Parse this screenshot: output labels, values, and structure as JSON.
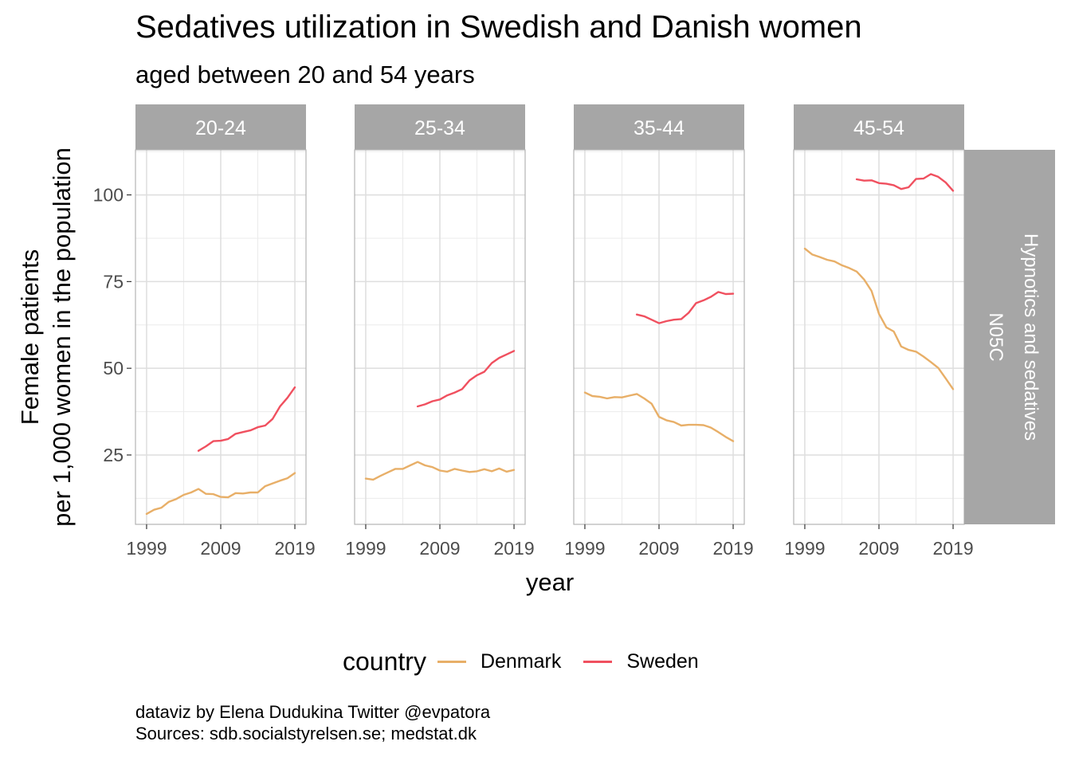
{
  "title": "Sedatives utilization in Swedish and Danish women",
  "subtitle": "aged between 20 and 54 years",
  "caption": {
    "line1": "dataviz by Elena Dudukina Twitter @evpatora",
    "line2": "Sources: sdb.socialstyrelsen.se; medstat.dk"
  },
  "legend": {
    "title": "country",
    "items": [
      {
        "label": "Denmark",
        "color": "#E8AF68"
      },
      {
        "label": "Sweden",
        "color": "#F0505F"
      }
    ]
  },
  "chart_data": {
    "type": "line",
    "xlabel": "year",
    "ylabel": [
      "Female patients",
      "per 1,000 women in the population"
    ],
    "row_strip": [
      "Hypnotics and sedatives",
      "N05C"
    ],
    "x_ticks": [
      1999,
      2009,
      2019
    ],
    "y_ticks": [
      25,
      50,
      75,
      100
    ],
    "xlim": [
      1997.5,
      2020.5
    ],
    "ylim": [
      5,
      113
    ],
    "grid": true,
    "legend_position": "bottom",
    "panels": [
      {
        "facet": "20-24",
        "series": [
          {
            "name": "Denmark",
            "x": [
              1999,
              2000,
              2001,
              2002,
              2003,
              2004,
              2005,
              2006,
              2007,
              2008,
              2009,
              2010,
              2011,
              2012,
              2013,
              2014,
              2015,
              2016,
              2017,
              2018,
              2019
            ],
            "y": [
              8,
              9.2,
              9.8,
              11.5,
              12.3,
              13.5,
              14.2,
              15.2,
              13.8,
              13.7,
              12.9,
              12.8,
              14,
              13.9,
              14.2,
              14.2,
              16,
              16.8,
              17.6,
              18.3,
              19.8
            ]
          },
          {
            "name": "Sweden",
            "x": [
              2006,
              2007,
              2008,
              2009,
              2010,
              2011,
              2012,
              2013,
              2014,
              2015,
              2016,
              2017,
              2018,
              2019
            ],
            "y": [
              26.2,
              27.5,
              29,
              29.1,
              29.6,
              31.1,
              31.6,
              32.1,
              33,
              33.5,
              35.4,
              39,
              41.5,
              44.5
            ]
          }
        ]
      },
      {
        "facet": "25-34",
        "series": [
          {
            "name": "Denmark",
            "x": [
              1999,
              2000,
              2001,
              2002,
              2003,
              2004,
              2005,
              2006,
              2007,
              2008,
              2009,
              2010,
              2011,
              2012,
              2013,
              2014,
              2015,
              2016,
              2017,
              2018,
              2019
            ],
            "y": [
              18.2,
              17.9,
              19,
              20,
              21,
              21,
              22,
              23,
              22,
              21.5,
              20.5,
              20.2,
              21,
              20.5,
              20.1,
              20.3,
              20.9,
              20.3,
              21.1,
              20.2,
              20.7
            ]
          },
          {
            "name": "Sweden",
            "x": [
              2006,
              2007,
              2008,
              2009,
              2010,
              2011,
              2012,
              2013,
              2014,
              2015,
              2016,
              2017,
              2018,
              2019
            ],
            "y": [
              39,
              39.6,
              40.5,
              41,
              42.2,
              43,
              44,
              46.5,
              48,
              49,
              51.5,
              53,
              54,
              55
            ]
          }
        ]
      },
      {
        "facet": "35-44",
        "series": [
          {
            "name": "Denmark",
            "x": [
              1999,
              2000,
              2001,
              2002,
              2003,
              2004,
              2005,
              2006,
              2007,
              2008,
              2009,
              2010,
              2011,
              2012,
              2013,
              2014,
              2015,
              2016,
              2017,
              2018,
              2019
            ],
            "y": [
              43,
              42,
              41.8,
              41.3,
              41.7,
              41.6,
              42.1,
              42.6,
              41.3,
              39.8,
              36,
              35,
              34.5,
              33.5,
              33.7,
              33.7,
              33.6,
              32.9,
              31.6,
              30.2,
              29
            ]
          },
          {
            "name": "Sweden",
            "x": [
              2006,
              2007,
              2008,
              2009,
              2010,
              2011,
              2012,
              2013,
              2014,
              2015,
              2016,
              2017,
              2018,
              2019
            ],
            "y": [
              65.5,
              65,
              64,
              63,
              63.6,
              64,
              64.2,
              66,
              68.8,
              69.6,
              70.6,
              72,
              71.4,
              71.5
            ]
          }
        ]
      },
      {
        "facet": "45-54",
        "series": [
          {
            "name": "Denmark",
            "x": [
              1999,
              2000,
              2001,
              2002,
              2003,
              2004,
              2005,
              2006,
              2007,
              2008,
              2009,
              2010,
              2011,
              2012,
              2013,
              2014,
              2015,
              2016,
              2017,
              2018,
              2019
            ],
            "y": [
              84.5,
              82.8,
              82.1,
              81.3,
              80.8,
              79.7,
              78.9,
              77.9,
              75.6,
              72.3,
              65.7,
              61.8,
              60.6,
              56.3,
              55.3,
              54.8,
              53.4,
              51.8,
              50.1,
              47.1,
              44
            ]
          },
          {
            "name": "Sweden",
            "x": [
              2006,
              2007,
              2008,
              2009,
              2010,
              2011,
              2012,
              2013,
              2014,
              2015,
              2016,
              2017,
              2018,
              2019
            ],
            "y": [
              104.5,
              104.1,
              104.2,
              103.4,
              103.2,
              102.8,
              101.7,
              102.2,
              104.6,
              104.7,
              106,
              105.2,
              103.6,
              101.2
            ]
          }
        ]
      }
    ]
  }
}
